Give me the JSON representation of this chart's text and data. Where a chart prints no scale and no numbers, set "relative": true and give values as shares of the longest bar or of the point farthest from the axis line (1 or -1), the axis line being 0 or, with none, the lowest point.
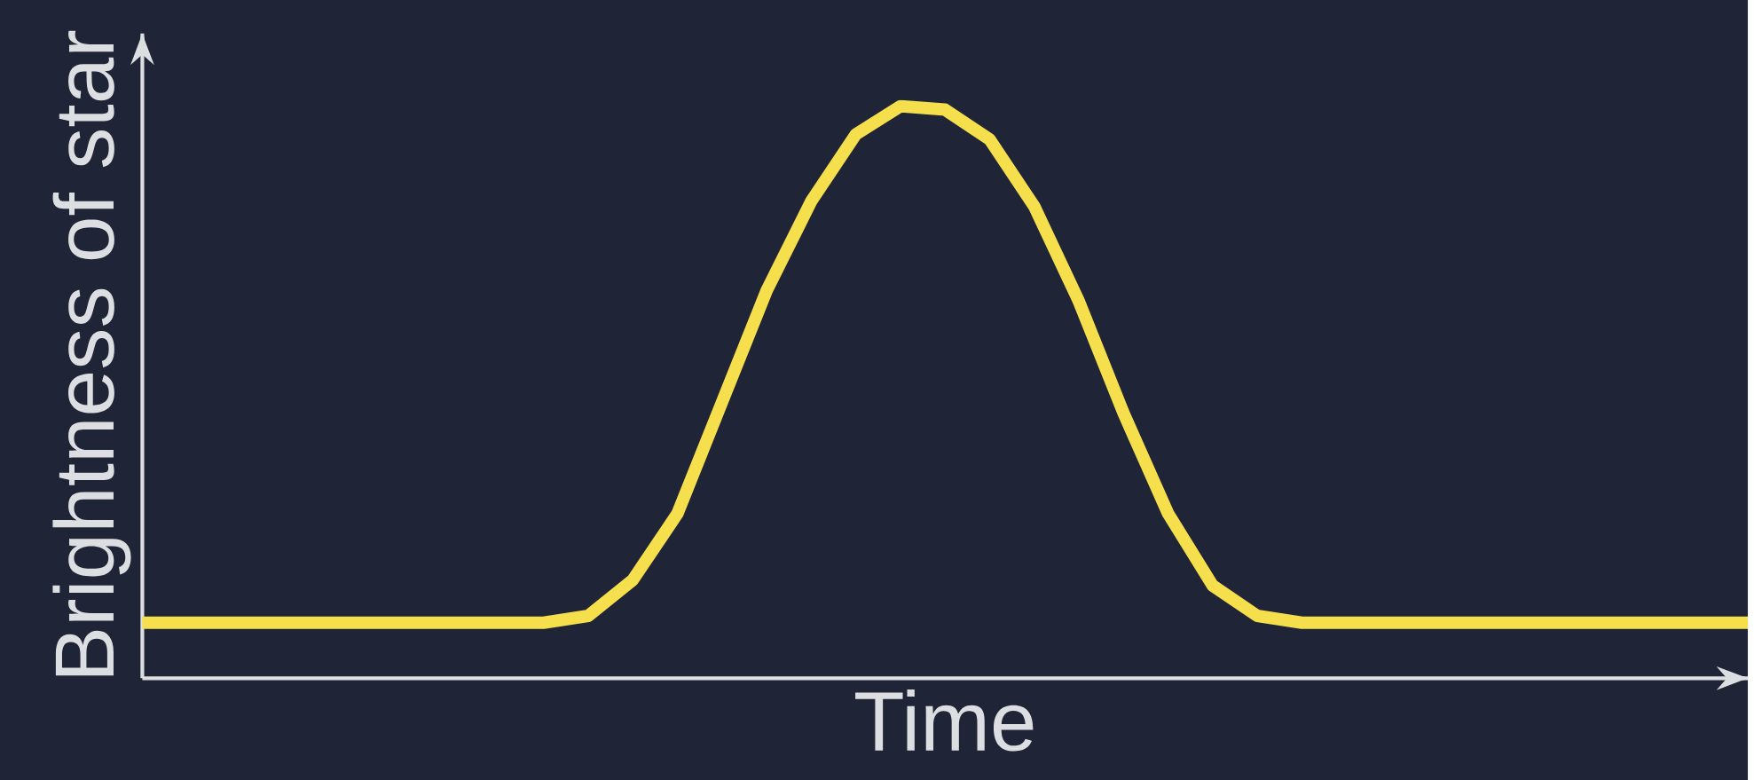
{
  "chart_data": {
    "type": "line",
    "xlabel": "Time",
    "ylabel": "Brightness of star",
    "relative": true,
    "color": "#f5df4d",
    "categories": [
      null,
      null,
      null,
      null,
      null,
      null,
      null,
      null,
      null,
      null,
      null,
      null,
      null,
      null,
      null,
      null,
      null,
      null,
      null,
      null,
      null,
      null,
      null,
      null,
      null,
      null,
      null,
      null,
      null,
      null,
      null,
      null,
      null,
      null,
      null,
      null,
      null
    ],
    "values": [
      0.097,
      0.097,
      0.097,
      0.097,
      0.097,
      0.097,
      0.097,
      0.097,
      0.097,
      0.097,
      0.109,
      0.172,
      0.288,
      0.483,
      0.678,
      0.834,
      0.951,
      1.0,
      0.994,
      0.942,
      0.825,
      0.659,
      0.464,
      0.288,
      0.162,
      0.109,
      0.097,
      0.097,
      0.097,
      0.097,
      0.097,
      0.097,
      0.097,
      0.097,
      0.097,
      0.097,
      0.097
    ]
  }
}
